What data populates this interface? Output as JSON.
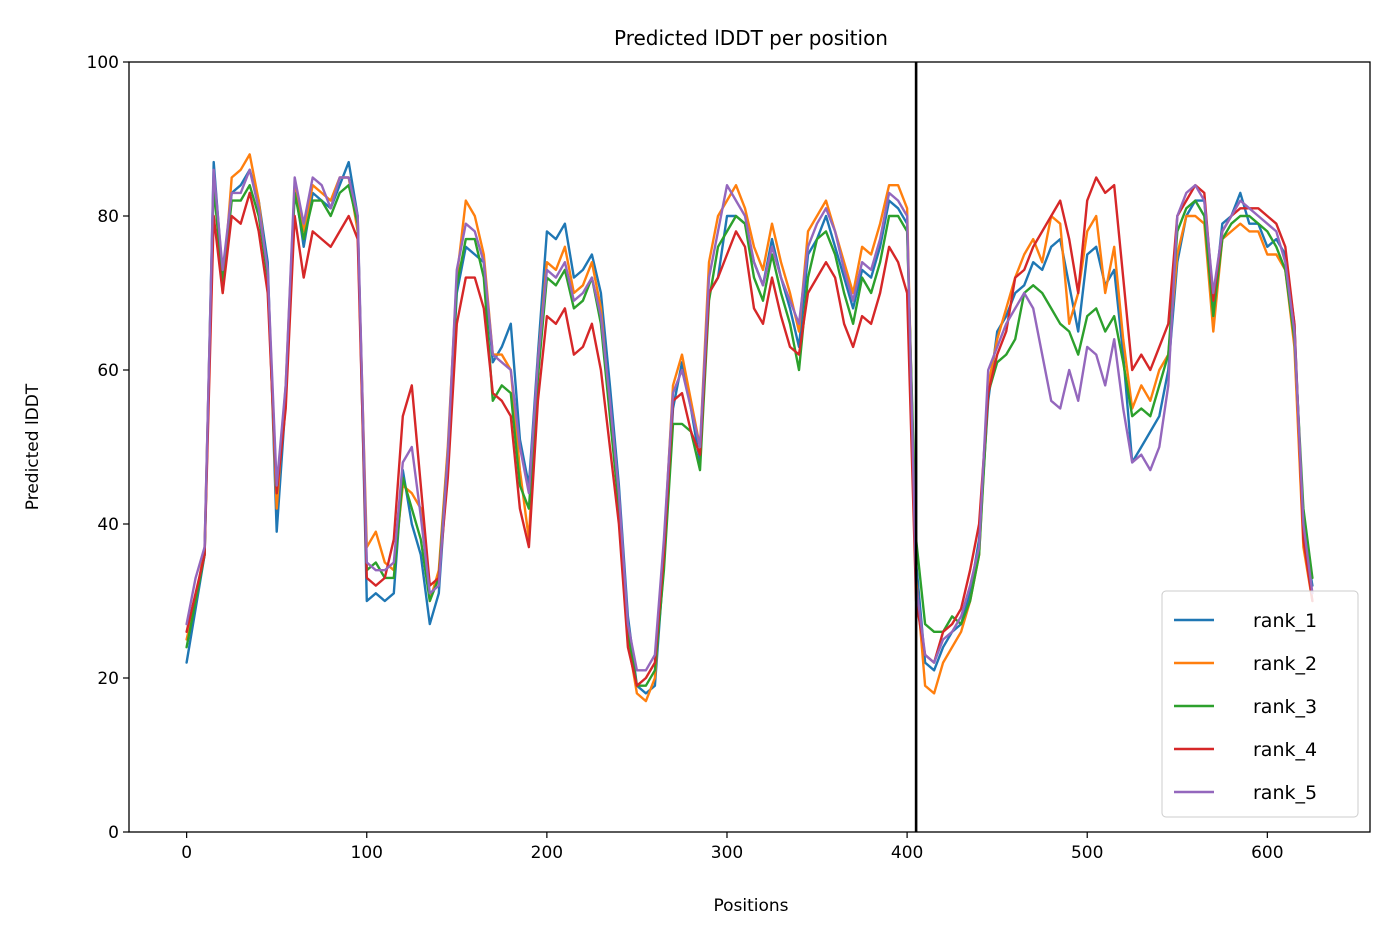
{
  "chart_data": {
    "type": "line",
    "title": "Predicted lDDT per position",
    "xlabel": "Positions",
    "ylabel": "Predicted lDDT",
    "xlim": [
      -32,
      657
    ],
    "ylim": [
      0,
      100
    ],
    "xticks": [
      0,
      100,
      200,
      300,
      400,
      500,
      600
    ],
    "yticks": [
      0,
      20,
      40,
      60,
      80,
      100
    ],
    "xtick_labels": [
      "0",
      "100",
      "200",
      "300",
      "400",
      "500",
      "600"
    ],
    "ytick_labels": [
      "0",
      "20",
      "40",
      "60",
      "80",
      "100"
    ],
    "grid": false,
    "legend_position": "lower-right",
    "vline": {
      "x": 405,
      "color": "#000000"
    },
    "series": [
      {
        "name": "rank_1",
        "color": "#1f77b4",
        "x": [
          0,
          5,
          10,
          15,
          20,
          25,
          30,
          35,
          40,
          45,
          50,
          55,
          60,
          65,
          70,
          75,
          80,
          85,
          90,
          95,
          100,
          105,
          110,
          115,
          120,
          125,
          130,
          135,
          140,
          145,
          150,
          155,
          160,
          165,
          170,
          175,
          180,
          185,
          190,
          195,
          200,
          205,
          210,
          215,
          220,
          225,
          230,
          235,
          240,
          245,
          250,
          255,
          260,
          265,
          270,
          275,
          280,
          285,
          290,
          295,
          300,
          305,
          310,
          315,
          320,
          325,
          330,
          335,
          340,
          345,
          350,
          355,
          360,
          365,
          370,
          375,
          380,
          385,
          390,
          395,
          400,
          405,
          410,
          415,
          420,
          425,
          430,
          435,
          440,
          445,
          450,
          455,
          460,
          465,
          470,
          475,
          480,
          485,
          490,
          495,
          500,
          505,
          510,
          515,
          520,
          525,
          530,
          535,
          540,
          545,
          550,
          555,
          560,
          565,
          570,
          575,
          580,
          585,
          590,
          595,
          600,
          605,
          610,
          615,
          620,
          625
        ],
        "y": [
          22,
          29,
          36,
          87,
          72,
          83,
          84,
          86,
          82,
          74,
          39,
          56,
          84,
          76,
          83,
          82,
          81,
          84,
          87,
          80,
          30,
          31,
          30,
          31,
          47,
          40,
          36,
          27,
          31,
          48,
          70,
          76,
          75,
          74,
          61,
          63,
          66,
          51,
          45,
          62,
          78,
          77,
          79,
          72,
          73,
          75,
          70,
          58,
          45,
          28,
          19,
          18,
          19,
          35,
          55,
          61,
          55,
          48,
          70,
          72,
          80,
          80,
          79,
          74,
          71,
          77,
          72,
          68,
          63,
          75,
          77,
          80,
          76,
          72,
          68,
          73,
          72,
          76,
          82,
          81,
          79,
          35,
          22,
          21,
          24,
          26,
          27,
          31,
          38,
          56,
          65,
          67,
          70,
          71,
          74,
          73,
          76,
          77,
          71,
          65,
          75,
          76,
          71,
          73,
          62,
          48,
          50,
          52,
          54,
          60,
          74,
          80,
          82,
          82,
          68,
          79,
          80,
          83,
          79,
          79,
          76,
          77,
          75,
          66,
          39,
          32
        ]
      },
      {
        "name": "rank_2",
        "color": "#ff7f0e",
        "x": [
          0,
          5,
          10,
          15,
          20,
          25,
          30,
          35,
          40,
          45,
          50,
          55,
          60,
          65,
          70,
          75,
          80,
          85,
          90,
          95,
          100,
          105,
          110,
          115,
          120,
          125,
          130,
          135,
          140,
          145,
          150,
          155,
          160,
          165,
          170,
          175,
          180,
          185,
          190,
          195,
          200,
          205,
          210,
          215,
          220,
          225,
          230,
          235,
          240,
          245,
          250,
          255,
          260,
          265,
          270,
          275,
          280,
          285,
          290,
          295,
          300,
          305,
          310,
          315,
          320,
          325,
          330,
          335,
          340,
          345,
          350,
          355,
          360,
          365,
          370,
          375,
          380,
          385,
          390,
          395,
          400,
          405,
          410,
          415,
          420,
          425,
          430,
          435,
          440,
          445,
          450,
          455,
          460,
          465,
          470,
          475,
          480,
          485,
          490,
          495,
          500,
          505,
          510,
          515,
          520,
          525,
          530,
          535,
          540,
          545,
          550,
          555,
          560,
          565,
          570,
          575,
          580,
          585,
          590,
          595,
          600,
          605,
          610,
          615,
          620,
          625
        ],
        "y": [
          25,
          30,
          37,
          85,
          70,
          85,
          86,
          88,
          82,
          72,
          42,
          58,
          84,
          78,
          84,
          83,
          82,
          85,
          85,
          78,
          37,
          39,
          35,
          34,
          45,
          44,
          42,
          30,
          34,
          50,
          72,
          82,
          80,
          75,
          62,
          62,
          60,
          47,
          38,
          61,
          74,
          73,
          76,
          70,
          71,
          74,
          68,
          55,
          43,
          25,
          18,
          17,
          20,
          37,
          58,
          62,
          56,
          50,
          74,
          80,
          82,
          84,
          81,
          76,
          73,
          79,
          74,
          70,
          65,
          78,
          80,
          82,
          78,
          74,
          70,
          76,
          75,
          79,
          84,
          84,
          81,
          33,
          19,
          18,
          22,
          24,
          26,
          30,
          36,
          58,
          64,
          68,
          72,
          75,
          77,
          74,
          80,
          79,
          66,
          70,
          78,
          80,
          70,
          76,
          64,
          55,
          58,
          56,
          60,
          62,
          75,
          80,
          80,
          79,
          65,
          77,
          78,
          79,
          78,
          78,
          75,
          75,
          73,
          63,
          37,
          30
        ]
      },
      {
        "name": "rank_3",
        "color": "#2ca02c",
        "x": [
          0,
          5,
          10,
          15,
          20,
          25,
          30,
          35,
          40,
          45,
          50,
          55,
          60,
          65,
          70,
          75,
          80,
          85,
          90,
          95,
          100,
          105,
          110,
          115,
          120,
          125,
          130,
          135,
          140,
          145,
          150,
          155,
          160,
          165,
          170,
          175,
          180,
          185,
          190,
          195,
          200,
          205,
          210,
          215,
          220,
          225,
          230,
          235,
          240,
          245,
          250,
          255,
          260,
          265,
          270,
          275,
          280,
          285,
          290,
          295,
          300,
          305,
          310,
          315,
          320,
          325,
          330,
          335,
          340,
          345,
          350,
          355,
          360,
          365,
          370,
          375,
          380,
          385,
          390,
          395,
          400,
          405,
          410,
          415,
          420,
          425,
          430,
          435,
          440,
          445,
          450,
          455,
          460,
          465,
          470,
          475,
          480,
          485,
          490,
          495,
          500,
          505,
          510,
          515,
          520,
          525,
          530,
          535,
          540,
          545,
          550,
          555,
          560,
          565,
          570,
          575,
          580,
          585,
          590,
          595,
          600,
          605,
          610,
          615,
          620,
          625
        ],
        "y": [
          24,
          30,
          36,
          84,
          71,
          82,
          82,
          84,
          80,
          72,
          44,
          57,
          83,
          77,
          82,
          82,
          80,
          83,
          84,
          79,
          34,
          35,
          33,
          33,
          46,
          42,
          38,
          30,
          33,
          49,
          71,
          77,
          77,
          72,
          56,
          58,
          57,
          45,
          42,
          59,
          72,
          71,
          73,
          68,
          69,
          72,
          66,
          54,
          42,
          26,
          19,
          19,
          21,
          34,
          53,
          53,
          52,
          47,
          69,
          76,
          78,
          80,
          79,
          72,
          69,
          75,
          70,
          66,
          60,
          72,
          77,
          78,
          75,
          70,
          66,
          72,
          70,
          74,
          80,
          80,
          78,
          38,
          27,
          26,
          26,
          28,
          27,
          30,
          36,
          57,
          61,
          62,
          64,
          70,
          71,
          70,
          68,
          66,
          65,
          62,
          67,
          68,
          65,
          67,
          61,
          54,
          55,
          54,
          58,
          62,
          78,
          81,
          82,
          80,
          67,
          77,
          79,
          80,
          80,
          79,
          78,
          76,
          73,
          64,
          42,
          33
        ]
      },
      {
        "name": "rank_4",
        "color": "#d62728",
        "x": [
          0,
          5,
          10,
          15,
          20,
          25,
          30,
          35,
          40,
          45,
          50,
          55,
          60,
          65,
          70,
          75,
          80,
          85,
          90,
          95,
          100,
          105,
          110,
          115,
          120,
          125,
          130,
          135,
          140,
          145,
          150,
          155,
          160,
          165,
          170,
          175,
          180,
          185,
          190,
          195,
          200,
          205,
          210,
          215,
          220,
          225,
          230,
          235,
          240,
          245,
          250,
          255,
          260,
          265,
          270,
          275,
          280,
          285,
          290,
          295,
          300,
          305,
          310,
          315,
          320,
          325,
          330,
          335,
          340,
          345,
          350,
          355,
          360,
          365,
          370,
          375,
          380,
          385,
          390,
          395,
          400,
          405,
          410,
          415,
          420,
          425,
          430,
          435,
          440,
          445,
          450,
          455,
          460,
          465,
          470,
          475,
          480,
          485,
          490,
          495,
          500,
          505,
          510,
          515,
          520,
          525,
          530,
          535,
          540,
          545,
          550,
          555,
          560,
          565,
          570,
          575,
          580,
          585,
          590,
          595,
          600,
          605,
          610,
          615,
          620,
          625
        ],
        "y": [
          26,
          31,
          36,
          80,
          70,
          80,
          79,
          83,
          78,
          70,
          44,
          55,
          80,
          72,
          78,
          77,
          76,
          78,
          80,
          77,
          33,
          32,
          33,
          38,
          54,
          58,
          45,
          32,
          33,
          46,
          66,
          72,
          72,
          68,
          57,
          56,
          54,
          42,
          37,
          56,
          67,
          66,
          68,
          62,
          63,
          66,
          60,
          50,
          40,
          24,
          19,
          20,
          22,
          36,
          56,
          57,
          52,
          49,
          70,
          72,
          75,
          78,
          76,
          68,
          66,
          72,
          67,
          63,
          62,
          70,
          72,
          74,
          72,
          66,
          63,
          67,
          66,
          70,
          76,
          74,
          70,
          30,
          23,
          22,
          26,
          27,
          29,
          34,
          40,
          57,
          62,
          65,
          72,
          73,
          76,
          78,
          80,
          82,
          77,
          70,
          82,
          85,
          83,
          84,
          72,
          60,
          62,
          60,
          63,
          66,
          80,
          82,
          84,
          83,
          69,
          78,
          80,
          81,
          81,
          81,
          80,
          79,
          76,
          66,
          38,
          30
        ]
      },
      {
        "name": "rank_5",
        "color": "#9467bd",
        "x": [
          0,
          5,
          10,
          15,
          20,
          25,
          30,
          35,
          40,
          45,
          50,
          55,
          60,
          65,
          70,
          75,
          80,
          85,
          90,
          95,
          100,
          105,
          110,
          115,
          120,
          125,
          130,
          135,
          140,
          145,
          150,
          155,
          160,
          165,
          170,
          175,
          180,
          185,
          190,
          195,
          200,
          205,
          210,
          215,
          220,
          225,
          230,
          235,
          240,
          245,
          250,
          255,
          260,
          265,
          270,
          275,
          280,
          285,
          290,
          295,
          300,
          305,
          310,
          315,
          320,
          325,
          330,
          335,
          340,
          345,
          350,
          355,
          360,
          365,
          370,
          375,
          380,
          385,
          390,
          395,
          400,
          405,
          410,
          415,
          420,
          425,
          430,
          435,
          440,
          445,
          450,
          455,
          460,
          465,
          470,
          475,
          480,
          485,
          490,
          495,
          500,
          505,
          510,
          515,
          520,
          525,
          530,
          535,
          540,
          545,
          550,
          555,
          560,
          565,
          570,
          575,
          580,
          585,
          590,
          595,
          600,
          605,
          610,
          615,
          620,
          625
        ],
        "y": [
          27,
          33,
          37,
          86,
          73,
          83,
          83,
          86,
          81,
          73,
          45,
          58,
          85,
          79,
          85,
          84,
          81,
          85,
          85,
          80,
          35,
          34,
          34,
          35,
          48,
          50,
          41,
          31,
          32,
          49,
          73,
          79,
          78,
          74,
          62,
          61,
          60,
          50,
          44,
          61,
          73,
          72,
          74,
          69,
          70,
          72,
          67,
          56,
          44,
          27,
          21,
          21,
          23,
          38,
          57,
          60,
          55,
          50,
          72,
          78,
          84,
          82,
          80,
          74,
          71,
          76,
          72,
          69,
          66,
          76,
          79,
          81,
          78,
          73,
          69,
          74,
          73,
          77,
          83,
          82,
          80,
          32,
          23,
          22,
          25,
          26,
          28,
          32,
          37,
          60,
          63,
          66,
          68,
          70,
          68,
          62,
          56,
          55,
          60,
          56,
          63,
          62,
          58,
          64,
          55,
          48,
          49,
          47,
          50,
          58,
          80,
          83,
          84,
          82,
          70,
          78,
          80,
          82,
          81,
          80,
          79,
          78,
          74,
          65,
          40,
          31
        ]
      }
    ]
  }
}
